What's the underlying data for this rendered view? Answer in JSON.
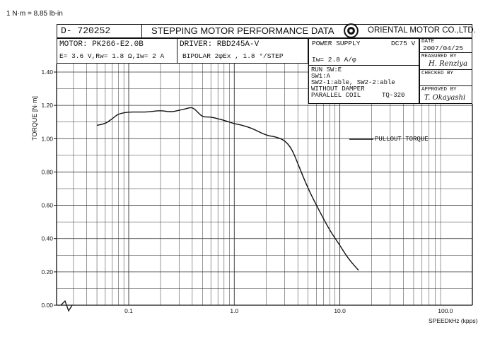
{
  "conversion_note": "1 N·m = 8.85 lb-in",
  "header": {
    "doc_id": "D- 720252",
    "title": "STEPPING MOTOR PERFORMANCE DATA",
    "company": "ORIENTAL MOTOR CO.,LTD."
  },
  "specs": {
    "motor": "MOTOR: PK266-E2.0B",
    "electrical": "E= 3.6  V,Rw= 1.8  Ω,Iw= 2   A",
    "driver": "DRIVER: RBD245A-V",
    "drive_mode": "BIPOLAR  2φEx ,   1.8 °/STEP",
    "power_supply_label": "POWER SUPPLY",
    "power_supply_value": "DC75 V",
    "current": "Iw= 2.8  A/φ",
    "run": "RUN SW:E",
    "sw1": "SW1:A",
    "sw2": "SW2-1:able, SW2-2:able",
    "damper": "WITHOUT DAMPER",
    "coil": "PARALLEL COIL",
    "test_id": "TQ-320"
  },
  "approvals": {
    "date_label": "DATE",
    "date_value": "2007/04/25",
    "measured_label": "MEASURED BY",
    "measured_sig": "H. Renziya",
    "checked_label": "CHECKED BY",
    "approved_label": "APPROVED BY",
    "approved_sig": "T. Okayashi"
  },
  "colors": {
    "ink": "#111111",
    "paper": "#ffffff"
  },
  "chart_data": {
    "type": "line",
    "xscale": "log",
    "xlim": [
      0.03,
      100
    ],
    "ylim": [
      0,
      1.4
    ],
    "xlabel": "SPEEDkHz (kpps)",
    "ylabel": "TORQUE [N·m]",
    "x_tick_labels": [
      {
        "value": 0.1,
        "label": "0.1"
      },
      {
        "value": 1,
        "label": "1.0"
      },
      {
        "value": 10,
        "label": "10.0"
      },
      {
        "value": 100,
        "label": "100.0"
      }
    ],
    "y_tick_labels": [
      {
        "value": 0,
        "label": "0.00"
      },
      {
        "value": 0.2,
        "label": "0.20"
      },
      {
        "value": 0.4,
        "label": "0.40"
      },
      {
        "value": 0.6,
        "label": "0.60"
      },
      {
        "value": 0.8,
        "label": "0.80"
      },
      {
        "value": 1.0,
        "label": "1.00"
      },
      {
        "value": 1.2,
        "label": "1.20"
      },
      {
        "value": 1.4,
        "label": "1.40"
      }
    ],
    "grid": true,
    "legend_position": "right",
    "series": [
      {
        "name": "PULLOUT  TORQUE",
        "points": [
          [
            0.05,
            1.08
          ],
          [
            0.06,
            1.09
          ],
          [
            0.07,
            1.12
          ],
          [
            0.08,
            1.15
          ],
          [
            0.1,
            1.16
          ],
          [
            0.12,
            1.16
          ],
          [
            0.15,
            1.16
          ],
          [
            0.2,
            1.17
          ],
          [
            0.25,
            1.16
          ],
          [
            0.3,
            1.17
          ],
          [
            0.35,
            1.18
          ],
          [
            0.4,
            1.19
          ],
          [
            0.45,
            1.16
          ],
          [
            0.5,
            1.13
          ],
          [
            0.6,
            1.13
          ],
          [
            0.7,
            1.12
          ],
          [
            0.8,
            1.11
          ],
          [
            1.0,
            1.09
          ],
          [
            1.2,
            1.08
          ],
          [
            1.5,
            1.06
          ],
          [
            2.0,
            1.02
          ],
          [
            2.5,
            1.01
          ],
          [
            3.0,
            0.99
          ],
          [
            3.5,
            0.94
          ],
          [
            4.0,
            0.85
          ],
          [
            5.0,
            0.7
          ],
          [
            6.0,
            0.6
          ],
          [
            8.0,
            0.45
          ],
          [
            10.0,
            0.36
          ],
          [
            12.0,
            0.28
          ],
          [
            15.0,
            0.21
          ]
        ]
      }
    ]
  }
}
